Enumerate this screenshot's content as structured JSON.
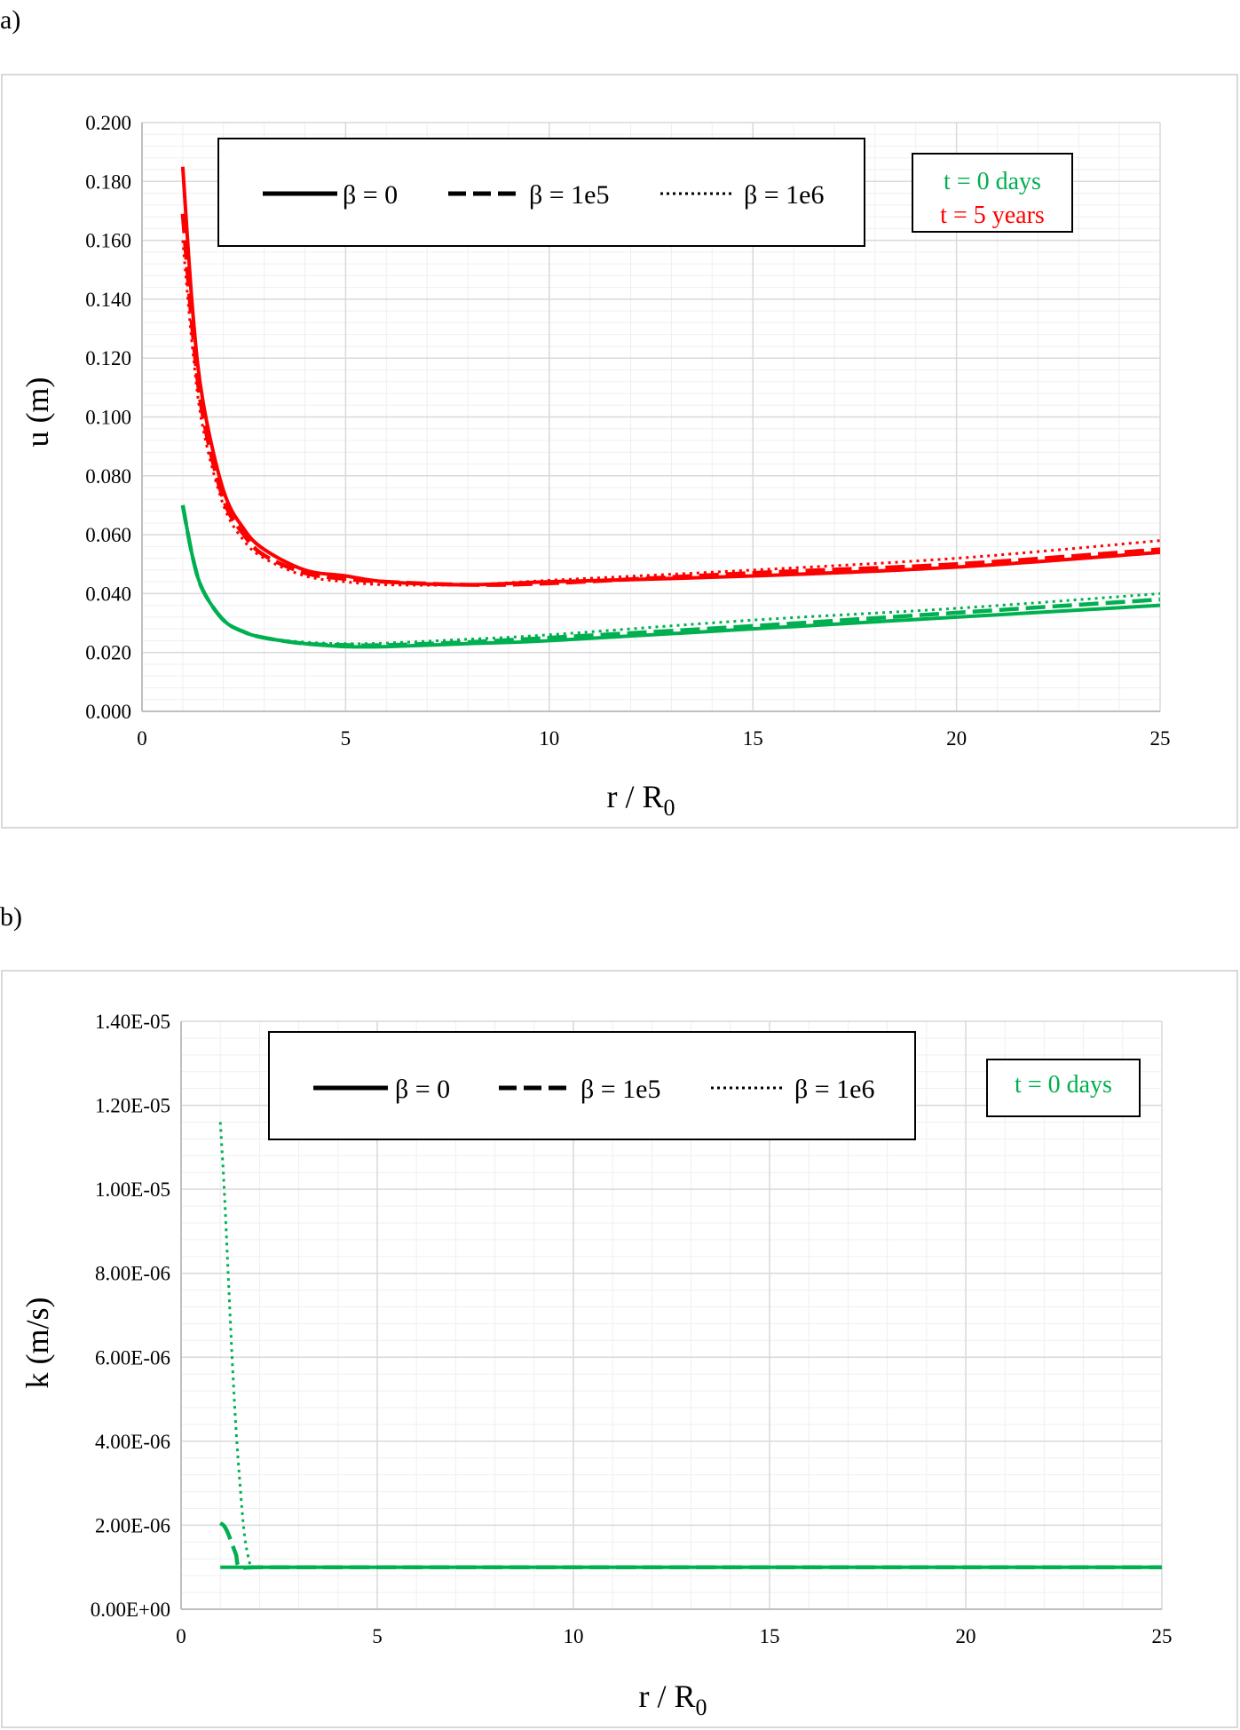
{
  "colors": {
    "green": "#00b050",
    "red": "#ff0000",
    "black": "#000000",
    "grid_major": "#d9d9d9",
    "grid_minor": "#efefef",
    "frame": "#d9d9d9"
  },
  "panels": [
    {
      "label": "a)",
      "time_labels": [
        "t = 0 days",
        "t = 5 years"
      ]
    },
    {
      "label": "b)",
      "time_labels": [
        "t = 0 days"
      ]
    }
  ],
  "chart_data": [
    {
      "type": "line",
      "xlabel_main": "r / R",
      "xlabel_sub": "0",
      "ylabel": "u (m)",
      "xlim": [
        0,
        25
      ],
      "ylim": [
        0,
        0.2
      ],
      "x_ticks": [
        "0",
        "5",
        "10",
        "15",
        "20",
        "25"
      ],
      "y_ticks": [
        "0.000",
        "0.020",
        "0.040",
        "0.060",
        "0.080",
        "0.100",
        "0.120",
        "0.140",
        "0.160",
        "0.180",
        "0.200"
      ],
      "grid": true,
      "legend": "top",
      "legend_entries": [
        "β = 0",
        "β = 1e5",
        "β = 1e6"
      ],
      "series": [
        {
          "name": "β = 0",
          "style": "solid",
          "color": "green",
          "x": [
            1,
            1.25,
            1.5,
            2,
            2.5,
            3,
            4,
            5,
            6,
            8,
            10,
            15,
            20,
            25
          ],
          "y": [
            0.07,
            0.052,
            0.041,
            0.031,
            0.027,
            0.025,
            0.023,
            0.022,
            0.022,
            0.023,
            0.024,
            0.028,
            0.032,
            0.036
          ]
        },
        {
          "name": "β = 1e5",
          "style": "dashed",
          "color": "green",
          "x": [
            1,
            1.25,
            1.5,
            2,
            2.5,
            3,
            4,
            5,
            6,
            8,
            10,
            15,
            20,
            25
          ],
          "y": [
            0.07,
            0.052,
            0.041,
            0.031,
            0.027,
            0.025,
            0.023,
            0.0225,
            0.0225,
            0.0235,
            0.025,
            0.029,
            0.0335,
            0.038
          ]
        },
        {
          "name": "β = 1e6",
          "style": "dotted",
          "color": "green",
          "x": [
            1,
            1.25,
            1.5,
            2,
            2.5,
            3,
            4,
            5,
            6,
            8,
            10,
            15,
            20,
            25
          ],
          "y": [
            0.07,
            0.052,
            0.041,
            0.031,
            0.027,
            0.025,
            0.0235,
            0.023,
            0.0232,
            0.0245,
            0.026,
            0.031,
            0.035,
            0.04
          ]
        },
        {
          "name": "β = 0",
          "style": "solid",
          "color": "red",
          "x": [
            1,
            1.25,
            1.5,
            2,
            2.5,
            3,
            4,
            5,
            6,
            8,
            10,
            15,
            20,
            25
          ],
          "y": [
            0.185,
            0.135,
            0.105,
            0.075,
            0.062,
            0.055,
            0.048,
            0.046,
            0.044,
            0.043,
            0.044,
            0.046,
            0.049,
            0.054
          ]
        },
        {
          "name": "β = 1e5",
          "style": "dashed",
          "color": "red",
          "x": [
            1,
            1.25,
            1.5,
            2,
            2.5,
            3,
            4,
            5,
            6,
            8,
            10,
            15,
            20,
            25
          ],
          "y": [
            0.169,
            0.128,
            0.1,
            0.072,
            0.06,
            0.053,
            0.047,
            0.045,
            0.044,
            0.043,
            0.0435,
            0.047,
            0.05,
            0.055
          ]
        },
        {
          "name": "β = 1e6",
          "style": "dotted",
          "color": "red",
          "x": [
            1,
            1.25,
            1.5,
            2,
            2.5,
            3,
            4,
            5,
            6,
            8,
            10,
            15,
            20,
            25
          ],
          "y": [
            0.16,
            0.122,
            0.096,
            0.07,
            0.058,
            0.052,
            0.046,
            0.044,
            0.043,
            0.043,
            0.0445,
            0.048,
            0.052,
            0.058
          ]
        }
      ]
    },
    {
      "type": "line",
      "xlabel_main": "r / R",
      "xlabel_sub": "0",
      "ylabel": "k (m/s)",
      "xlim": [
        0,
        25
      ],
      "ylim": [
        0,
        1.4e-05
      ],
      "x_ticks": [
        "0",
        "5",
        "10",
        "15",
        "20",
        "25"
      ],
      "y_ticks": [
        "0.00E+00",
        "2.00E-06",
        "4.00E-06",
        "6.00E-06",
        "8.00E-06",
        "1.00E-05",
        "1.20E-05",
        "1.40E-05"
      ],
      "grid": true,
      "legend": "top",
      "legend_entries": [
        "β = 0",
        "β = 1e5",
        "β = 1e6"
      ],
      "series": [
        {
          "name": "β = 0",
          "style": "solid",
          "color": "green",
          "x": [
            1,
            2,
            5,
            10,
            15,
            20,
            25
          ],
          "y": [
            1e-06,
            1e-06,
            1e-06,
            1e-06,
            1e-06,
            1e-06,
            1e-06
          ]
        },
        {
          "name": "β = 1e5",
          "style": "dashed",
          "color": "green",
          "x": [
            1,
            1.1,
            1.2,
            1.3,
            1.4,
            1.5,
            2,
            5,
            10,
            15,
            20,
            25
          ],
          "y": [
            2.05e-06,
            1.98e-06,
            1.8e-06,
            1.55e-06,
            1.3e-06,
            1e-06,
            1e-06,
            1e-06,
            1e-06,
            1e-06,
            1e-06,
            1e-06
          ]
        },
        {
          "name": "β = 1e6",
          "style": "dotted",
          "color": "green",
          "x": [
            1,
            1.1,
            1.2,
            1.3,
            1.4,
            1.5,
            1.6,
            1.7,
            1.8,
            2,
            5,
            10,
            15,
            20,
            25
          ],
          "y": [
            1.16e-05,
            1e-05,
            8e-06,
            6e-06,
            4.3e-06,
            3e-06,
            1.9e-06,
            1.3e-06,
            1e-06,
            1e-06,
            1e-06,
            1e-06,
            1e-06,
            1e-06,
            1e-06
          ]
        }
      ]
    }
  ]
}
